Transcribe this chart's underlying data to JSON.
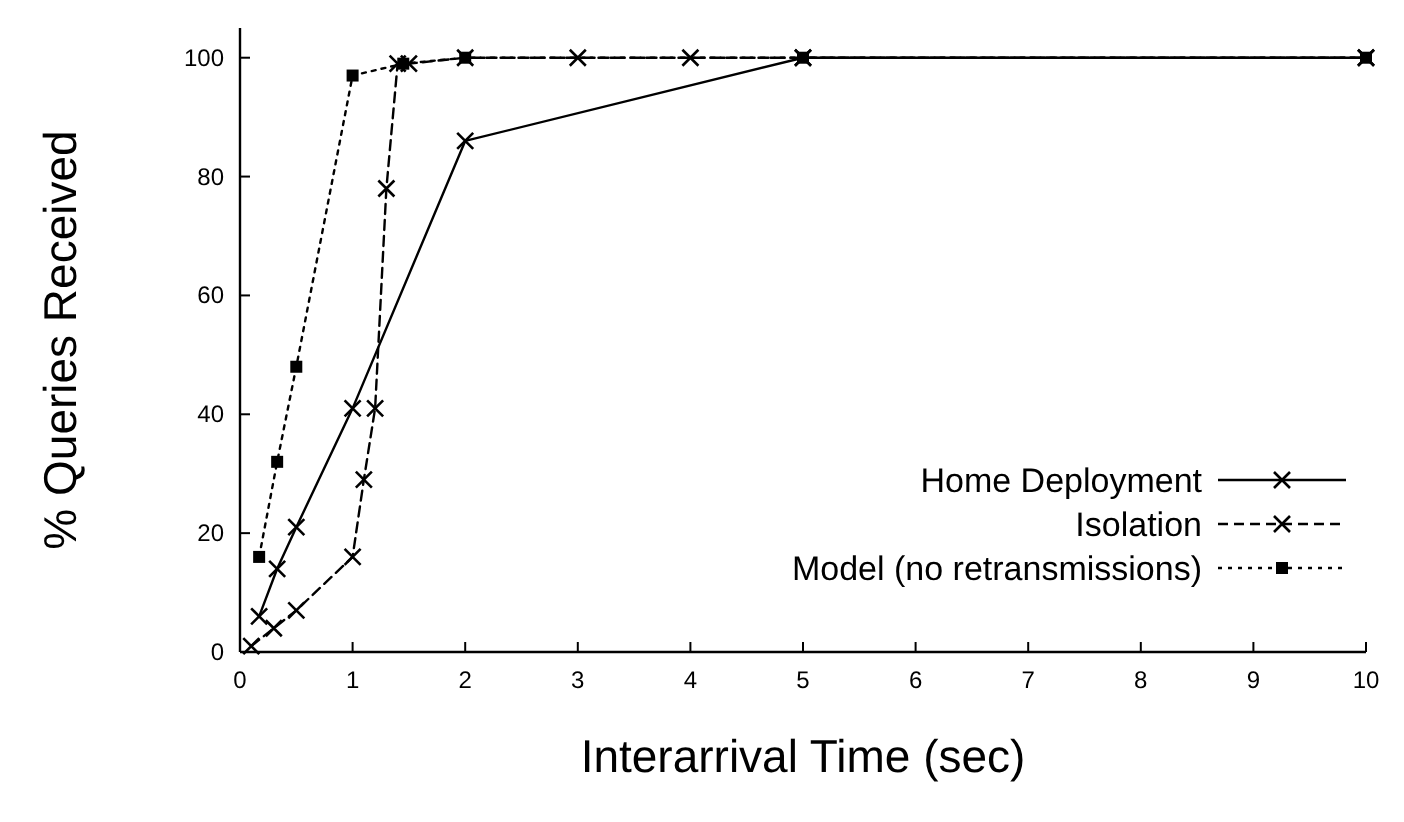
{
  "chart_data": {
    "type": "line",
    "xlabel": "Interarrival Time (sec)",
    "ylabel": "% Queries Received",
    "xlim": [
      0,
      10
    ],
    "xticks": [
      0,
      1,
      2,
      3,
      4,
      5,
      6,
      7,
      8,
      9,
      10
    ],
    "ylim": [
      0,
      105
    ],
    "yticks": [
      0,
      20,
      40,
      60,
      80,
      100
    ],
    "grid": false,
    "legend": "bottom right",
    "series": [
      {
        "name": "Home Deployment",
        "color": "#000000",
        "line_style": "solid",
        "marker": "cross",
        "x": [
          0.17,
          0.33,
          0.5,
          1,
          2,
          5,
          10
        ],
        "values": [
          6,
          14,
          21,
          41,
          86,
          100,
          100
        ]
      },
      {
        "name": "Isolation",
        "color": "#000000",
        "line_style": "dashed",
        "marker": "cross",
        "x": [
          0.1,
          0.3,
          0.5,
          1,
          1.1,
          1.2,
          1.3,
          1.4,
          1.5,
          2,
          3,
          4,
          5,
          10
        ],
        "values": [
          1,
          4,
          7,
          16,
          29,
          41,
          78,
          99,
          99,
          100,
          100,
          100,
          100,
          100
        ]
      },
      {
        "name": "Model (no retransmissions)",
        "color": "#000000",
        "line_style": "dotted",
        "marker": "square",
        "x": [
          0.17,
          0.33,
          0.5,
          1,
          1.45,
          2,
          5,
          10
        ],
        "values": [
          16,
          32,
          48,
          97,
          99,
          100,
          100,
          100
        ]
      }
    ]
  }
}
